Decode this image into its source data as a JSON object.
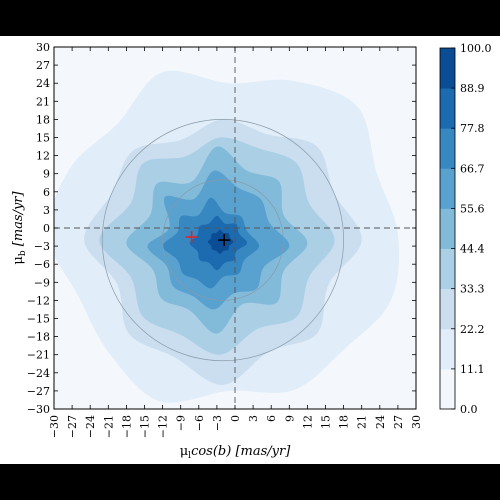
{
  "chart_data": {
    "type": "heatmap",
    "title": "",
    "xlabel_main": "μ",
    "xlabel_sub": "l",
    "xlabel_rest": "cos(b) [mas/yr]",
    "ylabel_main": "μ",
    "ylabel_sub": "b",
    "ylabel_rest": " [mas/yr]",
    "xlim": [
      -30,
      30
    ],
    "ylim": [
      -30,
      30
    ],
    "xticks": [
      -30,
      -27,
      -24,
      -21,
      -18,
      -15,
      -12,
      -9,
      -6,
      -3,
      0,
      3,
      6,
      9,
      12,
      15,
      18,
      21,
      24,
      27,
      30
    ],
    "yticks": [
      -30,
      -27,
      -24,
      -21,
      -18,
      -15,
      -12,
      -9,
      -6,
      -3,
      0,
      3,
      6,
      9,
      12,
      15,
      18,
      21,
      24,
      27,
      30
    ],
    "grid": false,
    "reference_lines": {
      "x": 0,
      "y": 0,
      "style": "dashed"
    },
    "reference_circles": [
      {
        "center": [
          -2,
          -2
        ],
        "radius": 10
      },
      {
        "center": [
          -2,
          -2
        ],
        "radius": 20
      }
    ],
    "markers": [
      {
        "symbol": "+",
        "color": "#d8262f",
        "x": -7.2,
        "y": -1.5
      },
      {
        "symbol": "+",
        "color": "#000000",
        "x": -1.8,
        "y": -2.0
      }
    ],
    "colorbar": {
      "range": [
        0,
        100
      ],
      "tick_labels": [
        "0.0",
        "11.1",
        "22.2",
        "33.3",
        "44.4",
        "55.6",
        "66.7",
        "77.8",
        "88.9",
        "100.0"
      ],
      "colors": [
        "#f4f8fd",
        "#e1edf8",
        "#cadef0",
        "#abcfe5",
        "#82bada",
        "#59a1cf",
        "#3787c0",
        "#1c6aaf",
        "#0b4d94"
      ]
    },
    "contour_levels": [
      {
        "level": 11.1,
        "center": [
          -1.0,
          -1.0
        ],
        "radii": [
          28,
          26.5,
          30,
          27.5,
          25,
          29,
          26,
          28.5,
          30,
          27,
          28,
          30,
          26,
          28,
          27,
          29
        ]
      },
      {
        "level": 22.2,
        "center": [
          -2.0,
          -2.0
        ],
        "radii": [
          23,
          20,
          22,
          19,
          20,
          18,
          21,
          20,
          23,
          19,
          22,
          21,
          24,
          20,
          22,
          19
        ]
      },
      {
        "level": 33.3,
        "center": [
          -2.5,
          -2.0
        ],
        "radii": [
          19,
          16,
          18,
          16.5,
          17,
          15,
          18,
          16,
          20,
          16,
          18,
          17,
          19,
          16,
          18,
          16
        ]
      },
      {
        "level": 44.4,
        "center": [
          -3.0,
          -2.5
        ],
        "radii": [
          15,
          12,
          14.5,
          13,
          16,
          11,
          14,
          12,
          15,
          11.5,
          13,
          12,
          15,
          11,
          14,
          12
        ]
      },
      {
        "level": 55.6,
        "center": [
          -3.5,
          -3.0
        ],
        "radii": [
          12.5,
          10,
          11,
          10.5,
          12.5,
          8.5,
          11.5,
          8,
          11,
          8.5,
          9.5,
          9,
          10.5,
          8.5,
          10,
          9
        ]
      },
      {
        "level": 66.7,
        "center": [
          -4.0,
          -3.0
        ],
        "radii": [
          8,
          6.5,
          7,
          6,
          8,
          5.5,
          7,
          6,
          8,
          6,
          6.5,
          6,
          7,
          5.5,
          6.5,
          6
        ]
      },
      {
        "level": 77.8,
        "center": [
          -3.0,
          -2.5
        ],
        "radii": [
          5,
          4,
          4.5,
          3.5,
          4.5,
          3.5,
          4,
          3.5,
          4.5,
          3.5,
          4,
          3.5,
          4.5,
          3.5,
          4,
          3.5
        ]
      },
      {
        "level": 88.9,
        "center": [
          -2.5,
          -2.3
        ],
        "radii": [
          2.2,
          1.8,
          2,
          1.6,
          2,
          1.6,
          1.9,
          1.6,
          2,
          1.6,
          1.8,
          1.6,
          2,
          1.6,
          1.9,
          1.7
        ]
      }
    ]
  }
}
